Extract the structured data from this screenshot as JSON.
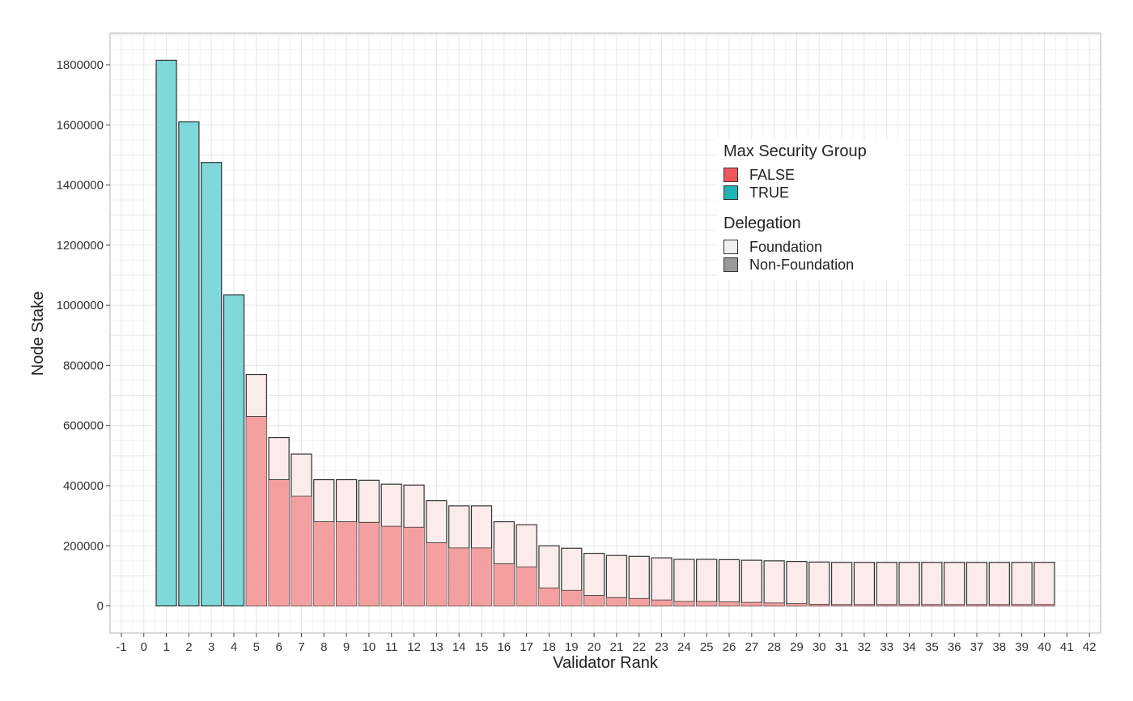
{
  "chart_data": {
    "type": "bar",
    "xlabel": "Validator Rank",
    "ylabel": "Node Stake",
    "x_ticks": [
      "-1",
      "0",
      "1",
      "2",
      "3",
      "4",
      "5",
      "6",
      "7",
      "8",
      "9",
      "10",
      "11",
      "12",
      "13",
      "14",
      "15",
      "16",
      "17",
      "18",
      "19",
      "20",
      "21",
      "22",
      "23",
      "24",
      "25",
      "26",
      "27",
      "28",
      "29",
      "30",
      "31",
      "32",
      "33",
      "34",
      "35",
      "36",
      "37",
      "38",
      "39",
      "40",
      "41",
      "42"
    ],
    "y_ticks": [
      "0",
      "200000",
      "400000",
      "600000",
      "800000",
      "1000000",
      "1200000",
      "1400000",
      "1600000",
      "1800000"
    ],
    "xlim": [
      -1.5,
      42.5
    ],
    "ylim": [
      -90000,
      1905000
    ],
    "grid": true,
    "legend_position": "top-right",
    "ranks": [
      1,
      2,
      3,
      4,
      5,
      6,
      7,
      8,
      9,
      10,
      11,
      12,
      13,
      14,
      15,
      16,
      17,
      18,
      19,
      20,
      21,
      22,
      23,
      24,
      25,
      26,
      27,
      28,
      29,
      30,
      31,
      32,
      33,
      34,
      35,
      36,
      37,
      38,
      39,
      40
    ],
    "max_security_group": [
      "TRUE",
      "TRUE",
      "TRUE",
      "TRUE",
      "FALSE",
      "FALSE",
      "FALSE",
      "FALSE",
      "FALSE",
      "FALSE",
      "FALSE",
      "FALSE",
      "FALSE",
      "FALSE",
      "FALSE",
      "FALSE",
      "FALSE",
      "FALSE",
      "FALSE",
      "FALSE",
      "FALSE",
      "FALSE",
      "FALSE",
      "FALSE",
      "FALSE",
      "FALSE",
      "FALSE",
      "FALSE",
      "FALSE",
      "FALSE",
      "FALSE",
      "FALSE",
      "FALSE",
      "FALSE",
      "FALSE",
      "FALSE",
      "FALSE",
      "FALSE",
      "FALSE",
      "FALSE"
    ],
    "series": [
      {
        "name": "Non-Foundation",
        "values": [
          1815000,
          1610000,
          1475000,
          1035000,
          630000,
          420000,
          365000,
          280000,
          280000,
          278000,
          265000,
          262000,
          210000,
          193000,
          193000,
          140000,
          130000,
          60000,
          52000,
          35000,
          28000,
          25000,
          20000,
          15000,
          15000,
          14000,
          12000,
          10000,
          8000,
          6000,
          5000,
          5000,
          5000,
          5000,
          5000,
          5000,
          5000,
          5000,
          5000,
          5000
        ]
      },
      {
        "name": "Foundation",
        "values": [
          0,
          0,
          0,
          0,
          140000,
          140000,
          140000,
          140000,
          140000,
          140000,
          140000,
          140000,
          140000,
          140000,
          140000,
          140000,
          140000,
          140000,
          140000,
          140000,
          140000,
          140000,
          140000,
          140000,
          140000,
          140000,
          140000,
          140000,
          140000,
          140000,
          140000,
          140000,
          140000,
          140000,
          140000,
          140000,
          140000,
          140000,
          140000,
          140000
        ]
      }
    ]
  },
  "legend": {
    "group_title": "Max Security Group",
    "group_items": [
      {
        "label": "FALSE",
        "color": "#F8766D"
      },
      {
        "label": "TRUE",
        "color": "#00BFC4"
      }
    ],
    "delegation_title": "Delegation",
    "delegation_items": [
      {
        "label": "Foundation",
        "color": "#EBEBEB"
      },
      {
        "label": "Non-Foundation",
        "color": "#999999"
      }
    ]
  },
  "colors": {
    "false_non_foundation": "#F4A0A0",
    "false_foundation": "#FCEBEB",
    "true_non_foundation": "#7FD8DA",
    "bar_outline": "#333333",
    "grid_major": "#E6E6E6",
    "grid_minor": "#F3F3F3"
  }
}
